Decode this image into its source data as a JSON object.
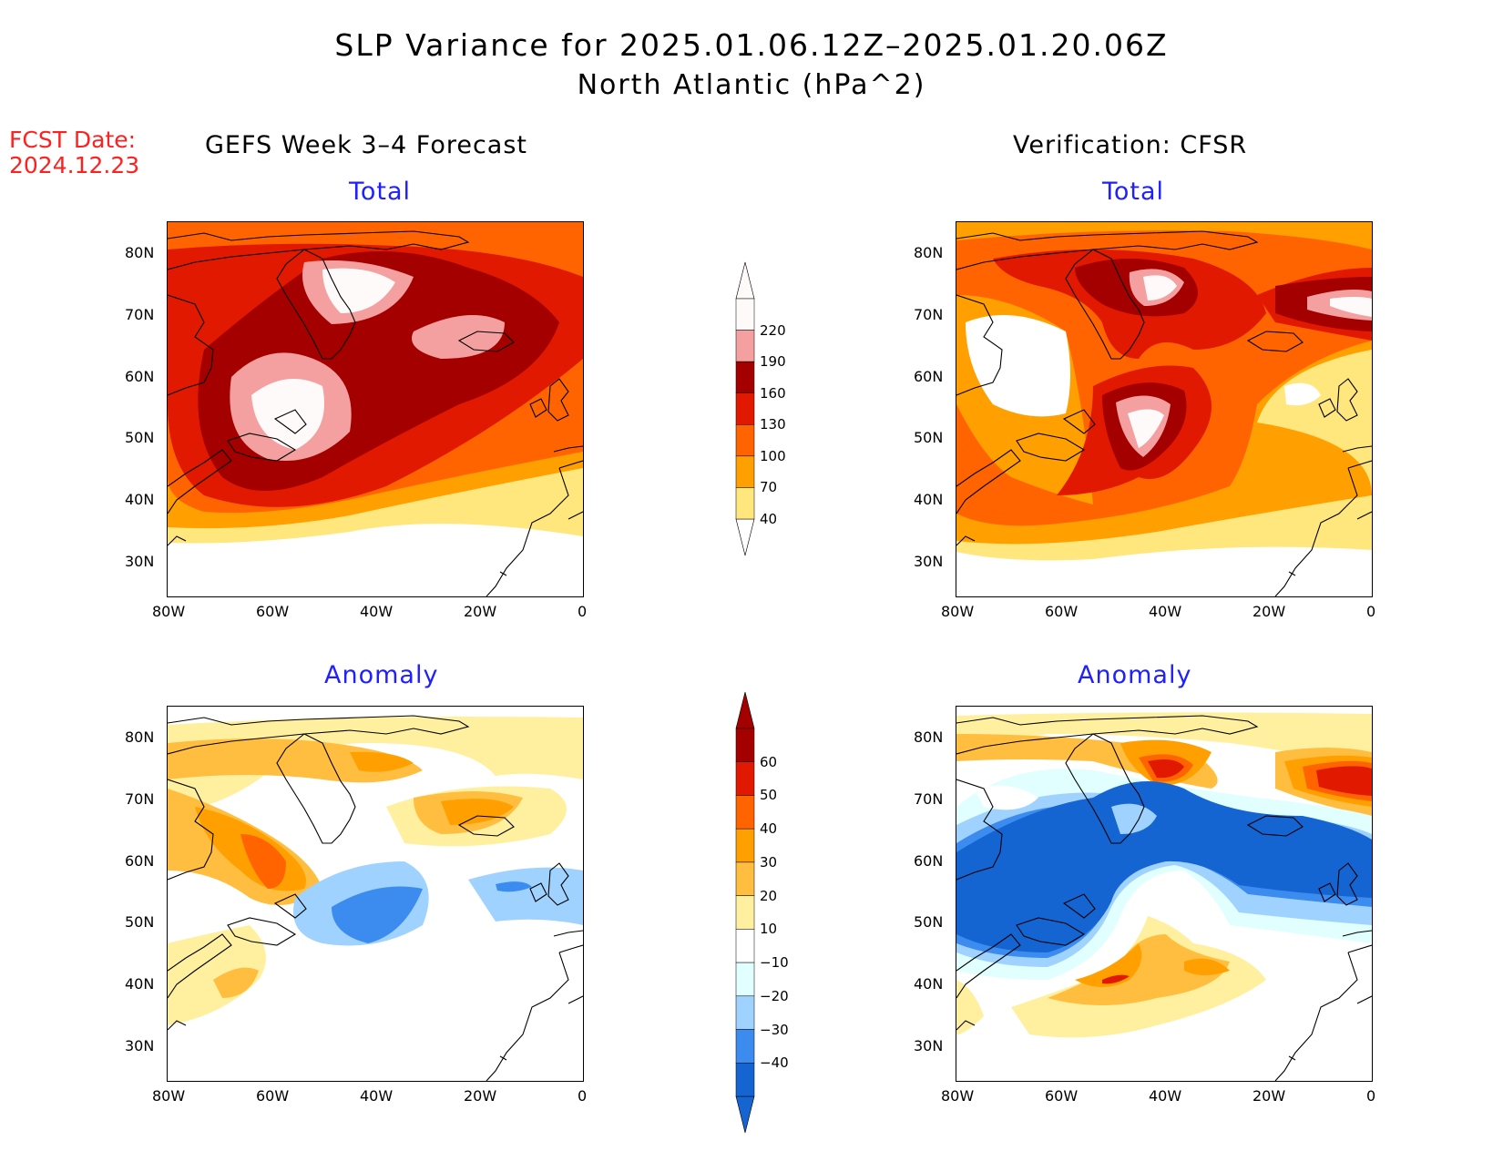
{
  "title": {
    "line1": "SLP Variance for 2025.01.06.12Z–2025.01.20.06Z",
    "line2": "North Atlantic (hPa^2)"
  },
  "fcst_date": {
    "label": "FCST Date:",
    "value": "2024.12.23"
  },
  "columns": {
    "left": "GEFS Week 3–4 Forecast",
    "right": "Verification: CFSR"
  },
  "panel_titles": {
    "total": "Total",
    "anomaly": "Anomaly"
  },
  "axes": {
    "x_ticks": [
      "80W",
      "60W",
      "40W",
      "20W",
      "0"
    ],
    "y_ticks": [
      "80N",
      "70N",
      "60N",
      "50N",
      "40N",
      "30N"
    ]
  },
  "colorbars": {
    "total": {
      "levels": [
        "220",
        "190",
        "160",
        "130",
        "100",
        "70",
        "40"
      ],
      "colors": [
        "#fffafa",
        "#f4a0a0",
        "#a50000",
        "#e11900",
        "#ff6400",
        "#ffa000",
        "#ffe67d"
      ]
    },
    "anomaly": {
      "levels": [
        "60",
        "50",
        "40",
        "30",
        "20",
        "10",
        "−10",
        "−20",
        "−30",
        "−40"
      ],
      "colors": [
        "#a50000",
        "#e11900",
        "#ff6400",
        "#ffa000",
        "#ffbe40",
        "#fff0a0",
        "#ffffff",
        "#e1ffff",
        "#a0d2ff",
        "#3c8cf0",
        "#1464d2"
      ]
    }
  }
}
